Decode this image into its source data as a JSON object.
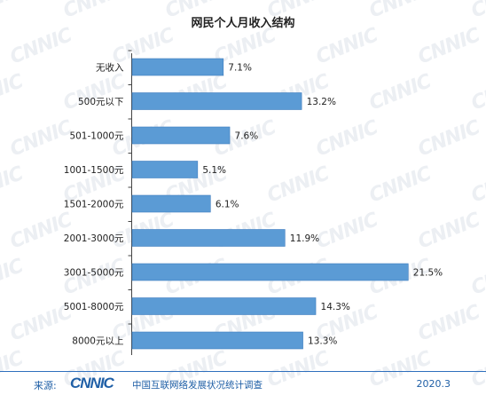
{
  "chart_data": {
    "type": "bar",
    "orientation": "horizontal",
    "title": "网民个人月收入结构",
    "categories": [
      "无收入",
      "500元以下",
      "501-1000元",
      "1001-1500元",
      "1501-2000元",
      "2001-3000元",
      "3001-5000元",
      "5001-8000元",
      "8000元以上"
    ],
    "values": [
      7.1,
      13.2,
      7.6,
      5.1,
      6.1,
      11.9,
      21.5,
      14.3,
      13.3
    ],
    "value_labels": [
      "7.1%",
      "13.2%",
      "7.6%",
      "5.1%",
      "6.1%",
      "11.9%",
      "21.5%",
      "14.3%",
      "13.3%"
    ],
    "xlim": [
      0,
      23
    ],
    "bar_color": "#5b9bd5",
    "bar_border": "#3f7dbf",
    "grid": false,
    "legend": "none"
  },
  "footer": {
    "source_label": "来源:",
    "logo_text": "CNNIC",
    "survey_name": "中国互联网络发展状况统计调查",
    "date": "2020.3"
  },
  "watermark": "CNNIC",
  "colors": {
    "accent": "#1f5fa6"
  }
}
